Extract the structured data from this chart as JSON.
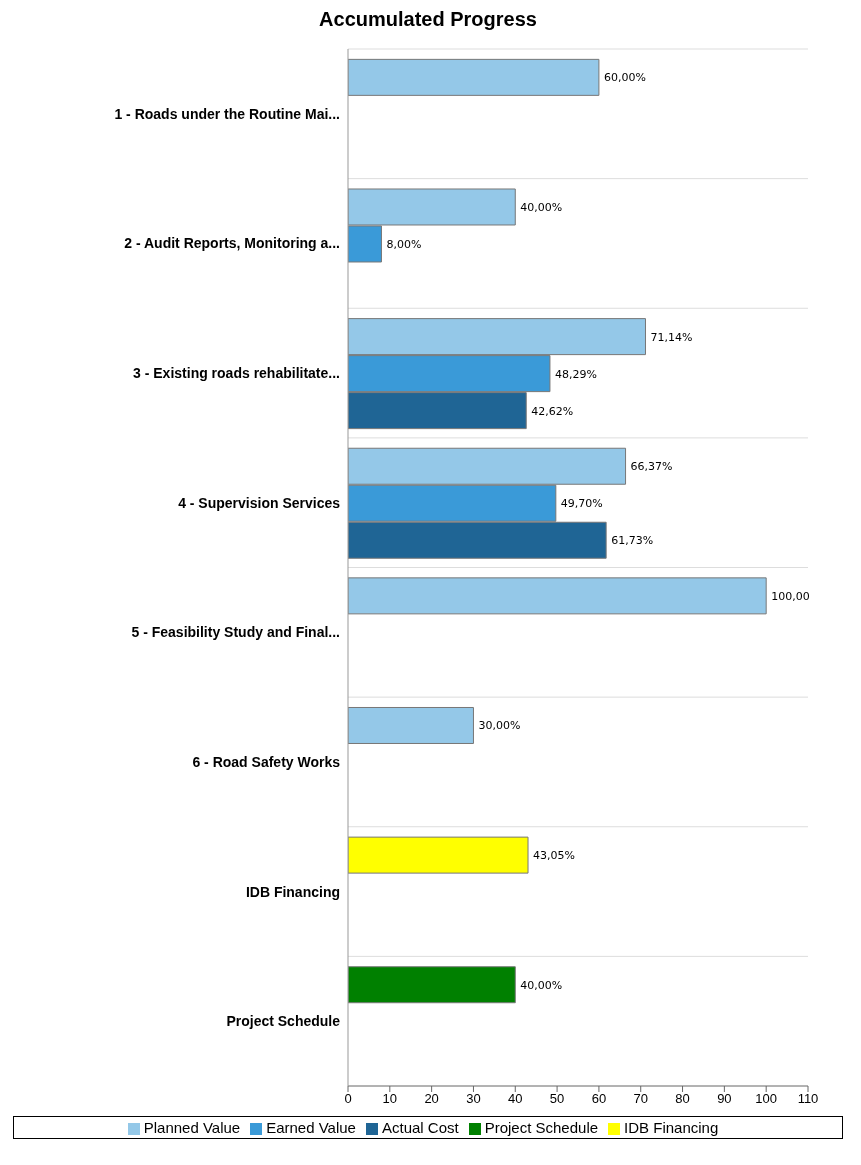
{
  "chart_data": {
    "type": "bar",
    "orientation": "horizontal",
    "title": "Accumulated Progress",
    "categories": [
      "1 - Roads under the Routine Mai...",
      "2 - Audit Reports, Monitoring a...",
      "3 - Existing roads rehabilitate...",
      "4 - Supervision Services",
      "5 - Feasibility Study and Final...",
      "6 - Road Safety Works",
      "IDB Financing",
      "Project Schedule"
    ],
    "series": [
      {
        "name": "Planned Value",
        "color": "#94c8e8",
        "values": [
          60,
          40,
          71.14,
          66.37,
          100,
          30,
          null,
          null
        ],
        "value_labels": [
          "60,00%",
          "40,00%",
          "71,14%",
          "66,37%",
          "100,00",
          "30,00%",
          null,
          null
        ]
      },
      {
        "name": "Earned Value",
        "color": "#3a9ad8",
        "values": [
          null,
          8,
          48.29,
          49.7,
          null,
          null,
          null,
          null
        ],
        "value_labels": [
          null,
          "8,00%",
          "48,29%",
          "49,70%",
          null,
          null,
          null,
          null
        ]
      },
      {
        "name": "Actual Cost",
        "color": "#1f6595",
        "values": [
          null,
          null,
          42.62,
          61.73,
          null,
          null,
          null,
          null
        ],
        "value_labels": [
          null,
          null,
          "42,62%",
          "61,73%",
          null,
          null,
          null,
          null
        ]
      },
      {
        "name": "Project Schedule",
        "color": "#008000",
        "values": [
          null,
          null,
          null,
          null,
          null,
          null,
          null,
          40
        ],
        "value_labels": [
          null,
          null,
          null,
          null,
          null,
          null,
          null,
          "40,00%"
        ]
      },
      {
        "name": "IDB Financing",
        "color": "#ffff00",
        "values": [
          null,
          null,
          null,
          null,
          null,
          null,
          43.05,
          null
        ],
        "value_labels": [
          null,
          null,
          null,
          null,
          null,
          null,
          "43,05%",
          null
        ]
      }
    ],
    "xlim": [
      0,
      110
    ],
    "xticks": [
      0,
      10,
      20,
      30,
      40,
      50,
      60,
      70,
      80,
      90,
      100,
      110
    ],
    "grid": "y",
    "legend": "bottom"
  }
}
